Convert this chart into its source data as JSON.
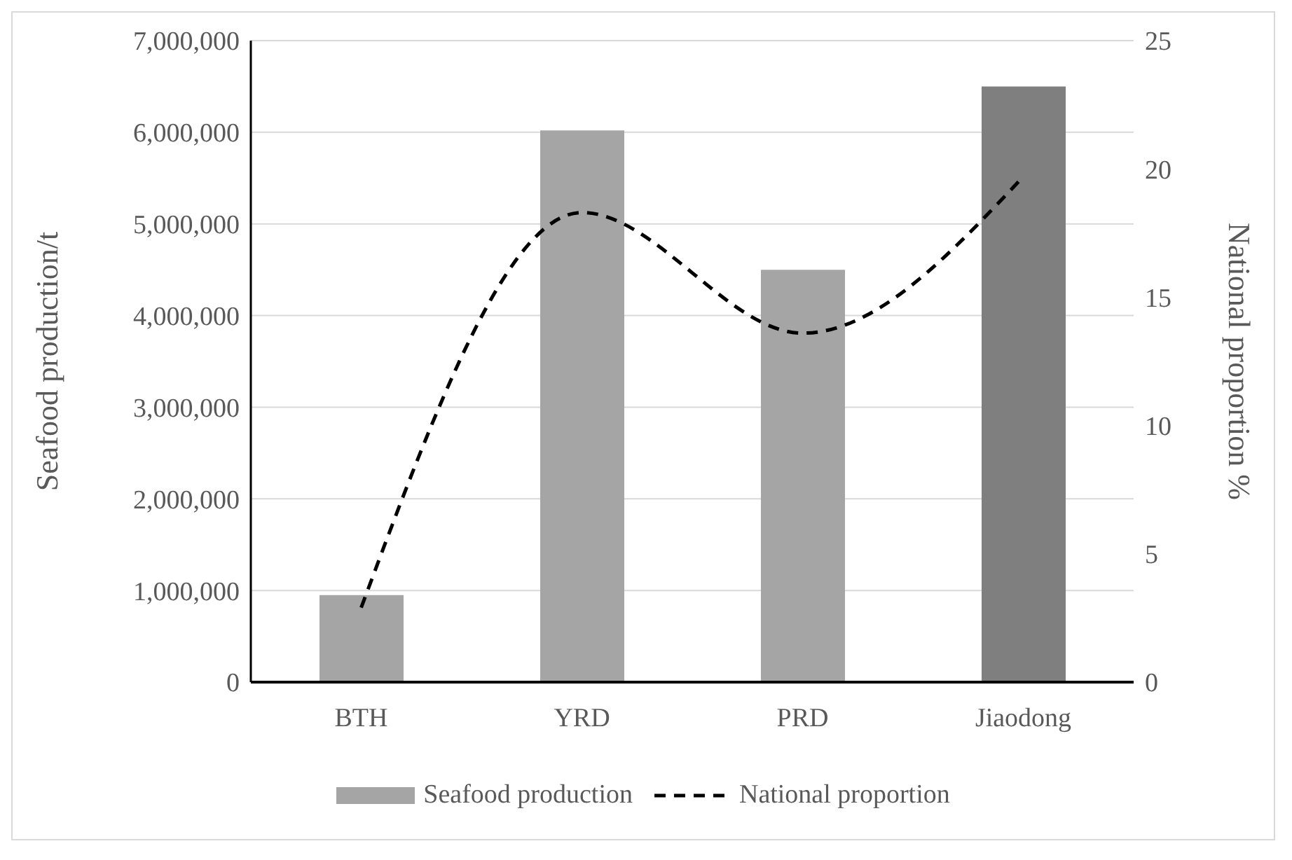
{
  "chart_data": {
    "type": "bar",
    "categories": [
      "BTH",
      "YRD",
      "PRD",
      "Jiaodong"
    ],
    "xlabel": null,
    "ylabel": "Seafood production/t",
    "y2label": "National proportion %",
    "series": [
      {
        "name": "Seafood production",
        "color": "#a5a5a5",
        "colors": [
          "#a5a5a5",
          "#a5a5a5",
          "#a5a5a5",
          "#7f7f7f"
        ],
        "values": [
          950000,
          6020000,
          4500000,
          6500000
        ]
      },
      {
        "name": "National proportion",
        "type": "line",
        "axis": "y2",
        "color": "#000000",
        "line_style": "dashed",
        "marker": "none",
        "values": [
          2.9,
          18.3,
          13.6,
          19.7
        ]
      }
    ],
    "ylim": [
      0,
      7000000
    ],
    "yticks": [
      0,
      {
        "value": 1000000,
        "label": "1,000,000"
      },
      {
        "value": 2000000,
        "label": "2,000,000"
      },
      {
        "value": 3000000,
        "label": "3,000,000"
      },
      {
        "value": 4000000,
        "label": "4,000,000"
      },
      {
        "value": 5000000,
        "label": "5,000,000"
      },
      {
        "value": 6000000,
        "label": "6,000,000"
      },
      {
        "value": 7000000,
        "label": "7,000,000"
      }
    ],
    "y2lim": [
      0,
      25
    ],
    "y2ticks": [
      0,
      5,
      10,
      15,
      20,
      25
    ],
    "grid": "y",
    "legend": "bottom"
  }
}
